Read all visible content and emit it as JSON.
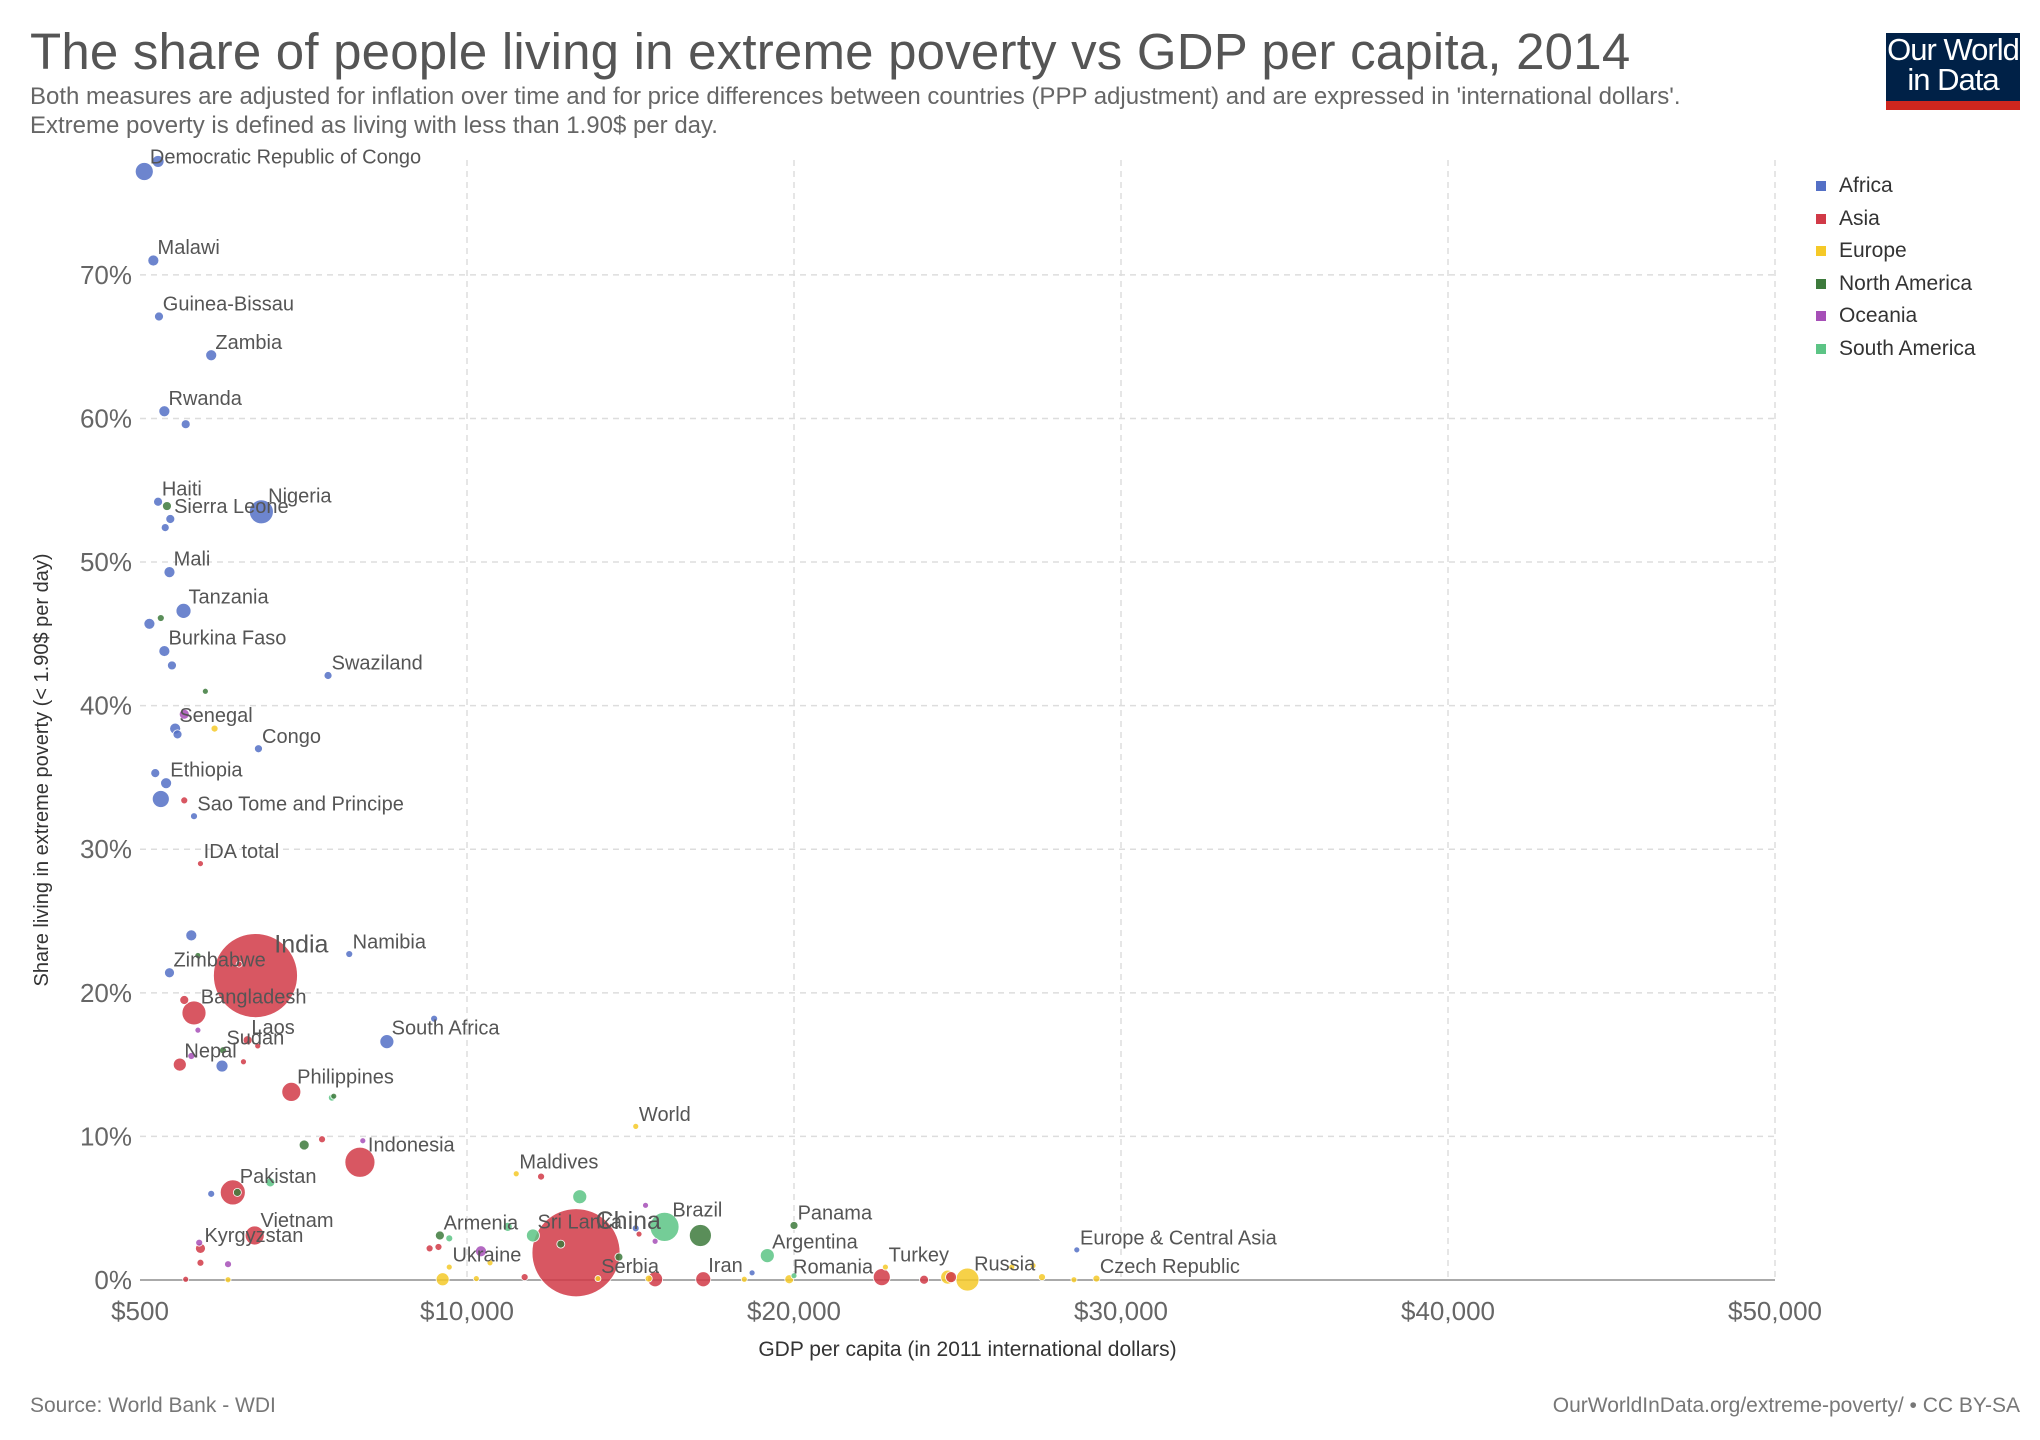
{
  "title": "The share of people living in extreme poverty vs GDP per capita, 2014",
  "subtitle": "Both measures are adjusted for inflation over time and for price differences between countries (PPP adjustment) and are expressed in 'international dollars'.\nExtreme poverty is defined as living with less than 1.90$ per day.",
  "logo": {
    "line1": "Our World",
    "line2": "in Data",
    "bg_color": "#002147",
    "accent_color": "#ce261e"
  },
  "footer": {
    "source": "Source: World Bank - WDI",
    "url": "OurWorldInData.org/extreme-poverty/ • CC BY-SA"
  },
  "legend": [
    {
      "name": "Africa",
      "color": "#5470c6"
    },
    {
      "name": "Asia",
      "color": "#d13a47"
    },
    {
      "name": "Europe",
      "color": "#f5c928"
    },
    {
      "name": "North America",
      "color": "#3d7a3c"
    },
    {
      "name": "Oceania",
      "color": "#a64fb7"
    },
    {
      "name": "South America",
      "color": "#5cc485"
    }
  ],
  "chart_data": {
    "type": "scatter",
    "title": "The share of people living in extreme poverty vs GDP per capita, 2014",
    "xlabel": "GDP per capita (in 2011 international dollars)",
    "ylabel": "Share living in extreme poverty (< 1.90$ per day)",
    "x_scale": "log",
    "xlim": [
      500,
      50000
    ],
    "ylim": [
      0,
      78
    ],
    "x_ticks": [
      {
        "value": 500,
        "label": "$500"
      },
      {
        "value": 10000,
        "label": "$10,000"
      },
      {
        "value": 20000,
        "label": "$20,000"
      },
      {
        "value": 30000,
        "label": "$30,000"
      },
      {
        "value": 40000,
        "label": "$40,000"
      },
      {
        "value": 50000,
        "label": "$50,000"
      }
    ],
    "y_ticks": [
      {
        "value": 0,
        "label": "0%"
      },
      {
        "value": 10,
        "label": "10%"
      },
      {
        "value": 20,
        "label": "20%"
      },
      {
        "value": 30,
        "label": "30%"
      },
      {
        "value": 40,
        "label": "40%"
      },
      {
        "value": 50,
        "label": "50%"
      },
      {
        "value": 60,
        "label": "60%"
      },
      {
        "value": 70,
        "label": "70%"
      }
    ],
    "grid": true,
    "legend_position": "right",
    "points": [
      {
        "label": "Democratic Republic of Congo",
        "x": 520,
        "y": 77.2,
        "region": "Africa",
        "r": 9
      },
      {
        "label": "",
        "x": 590,
        "y": 77.9,
        "region": "Africa",
        "r": 6
      },
      {
        "label": "Malawi",
        "x": 565,
        "y": 71,
        "region": "Africa",
        "r": 5.5
      },
      {
        "label": "Guinea-Bissau",
        "x": 595,
        "y": 67.1,
        "region": "Africa",
        "r": 4.5
      },
      {
        "label": "Zambia",
        "x": 960,
        "y": 64.4,
        "region": "Africa",
        "r": 5.5
      },
      {
        "label": "Rwanda",
        "x": 625,
        "y": 60.5,
        "region": "Africa",
        "r": 5.5
      },
      {
        "label": "",
        "x": 760,
        "y": 59.6,
        "region": "Africa",
        "r": 4.5
      },
      {
        "label": "Haiti",
        "x": 590,
        "y": 54.2,
        "region": "Africa",
        "r": 4.5
      },
      {
        "label": "",
        "x": 640,
        "y": 53.9,
        "region": "North America",
        "r": 4.5
      },
      {
        "label": "Sierra Leone",
        "x": 660,
        "y": 53,
        "region": "Africa",
        "r": 4.5
      },
      {
        "label": "Nigeria",
        "x": 1520,
        "y": 53.5,
        "region": "Africa",
        "r": 12
      },
      {
        "label": "",
        "x": 630,
        "y": 52.4,
        "region": "Africa",
        "r": 4
      },
      {
        "label": "Mali",
        "x": 655,
        "y": 49.3,
        "region": "Africa",
        "r": 5.5
      },
      {
        "label": "Tanzania",
        "x": 745,
        "y": 46.6,
        "region": "Africa",
        "r": 7.5
      },
      {
        "label": "",
        "x": 545,
        "y": 45.7,
        "region": "Africa",
        "r": 5.5
      },
      {
        "label": "",
        "x": 605,
        "y": 46.1,
        "region": "North America",
        "r": 3.5
      },
      {
        "label": "Burkina Faso",
        "x": 625,
        "y": 43.8,
        "region": "Africa",
        "r": 5.5
      },
      {
        "label": "",
        "x": 670,
        "y": 42.8,
        "region": "Africa",
        "r": 4.5
      },
      {
        "label": "",
        "x": 910,
        "y": 41,
        "region": "North America",
        "r": 3
      },
      {
        "label": "Swaziland",
        "x": 2800,
        "y": 42.1,
        "region": "Africa",
        "r": 4
      },
      {
        "label": "",
        "x": 750,
        "y": 39.4,
        "region": "Oceania",
        "r": 5
      },
      {
        "label": "Senegal",
        "x": 690,
        "y": 38.4,
        "region": "Africa",
        "r": 5.5
      },
      {
        "label": "",
        "x": 705,
        "y": 38,
        "region": "Africa",
        "r": 4.5
      },
      {
        "label": "",
        "x": 990,
        "y": 38.4,
        "region": "Europe",
        "r": 3.5
      },
      {
        "label": "Congo",
        "x": 1480,
        "y": 37,
        "region": "Africa",
        "r": 4
      },
      {
        "label": "",
        "x": 575,
        "y": 35.3,
        "region": "Africa",
        "r": 4.5
      },
      {
        "label": "Ethiopia",
        "x": 635,
        "y": 34.6,
        "region": "Africa",
        "r": 5.5
      },
      {
        "label": "",
        "x": 605,
        "y": 33.5,
        "region": "Africa",
        "r": 8.5
      },
      {
        "label": "",
        "x": 750,
        "y": 33.4,
        "region": "Asia",
        "r": 3.5
      },
      {
        "label": "Sao Tome and Principe",
        "x": 820,
        "y": 32.3,
        "region": "Africa",
        "r": 3.5
      },
      {
        "label": "IDA total",
        "x": 870,
        "y": 29,
        "region": "Asia",
        "r": 3
      },
      {
        "label": "India",
        "x": 1440,
        "y": 21.2,
        "region": "Asia",
        "r": 42
      },
      {
        "label": "Namibia",
        "x": 3400,
        "y": 22.7,
        "region": "Africa",
        "r": 3.5
      },
      {
        "label": "",
        "x": 800,
        "y": 24,
        "region": "Africa",
        "r": 5.5
      },
      {
        "label": "Zimbabwe",
        "x": 655,
        "y": 21.4,
        "region": "Africa",
        "r": 5
      },
      {
        "label": "",
        "x": 850,
        "y": 22.6,
        "region": "North America",
        "r": 3
      },
      {
        "label": "",
        "x": 1240,
        "y": 22,
        "region": "Asia",
        "r": 3
      },
      {
        "label": "",
        "x": 750,
        "y": 19.5,
        "region": "Asia",
        "r": 4.5
      },
      {
        "label": "Bangladesh",
        "x": 820,
        "y": 18.6,
        "region": "Asia",
        "r": 12
      },
      {
        "label": "South Africa",
        "x": 4800,
        "y": 16.6,
        "region": "Africa",
        "r": 7
      },
      {
        "label": "",
        "x": 7400,
        "y": 18.2,
        "region": "Africa",
        "r": 3.5
      },
      {
        "label": "",
        "x": 850,
        "y": 17.4,
        "region": "Oceania",
        "r": 3
      },
      {
        "label": "Laos",
        "x": 1340,
        "y": 16.7,
        "region": "Asia",
        "r": 4.5
      },
      {
        "label": "",
        "x": 1470,
        "y": 16.3,
        "region": "Asia",
        "r": 3
      },
      {
        "label": "Nepal",
        "x": 720,
        "y": 15,
        "region": "Asia",
        "r": 6.5
      },
      {
        "label": "",
        "x": 800,
        "y": 15.6,
        "region": "Oceania",
        "r": 3.5
      },
      {
        "label": "Sudan",
        "x": 1070,
        "y": 16,
        "region": "North America",
        "r": 3.5
      },
      {
        "label": "",
        "x": 1060,
        "y": 14.9,
        "region": "Africa",
        "r": 6
      },
      {
        "label": "",
        "x": 1290,
        "y": 15.2,
        "region": "Asia",
        "r": 3
      },
      {
        "label": "Philippines",
        "x": 2000,
        "y": 13.1,
        "region": "Asia",
        "r": 9.5
      },
      {
        "label": "",
        "x": 2900,
        "y": 12.7,
        "region": "South America",
        "r": 3.5
      },
      {
        "label": "",
        "x": 2950,
        "y": 12.8,
        "region": "North America",
        "r": 3
      },
      {
        "label": "World",
        "x": 14300,
        "y": 10.7,
        "region": "Europe",
        "r": 3
      },
      {
        "label": "",
        "x": 2250,
        "y": 9.4,
        "region": "North America",
        "r": 5
      },
      {
        "label": "",
        "x": 2650,
        "y": 9.8,
        "region": "Asia",
        "r": 3.5
      },
      {
        "label": "Indonesia",
        "x": 3750,
        "y": 8.2,
        "region": "Asia",
        "r": 15
      },
      {
        "label": "",
        "x": 3850,
        "y": 9.7,
        "region": "Oceania",
        "r": 3
      },
      {
        "label": "Maldives",
        "x": 11100,
        "y": 7.4,
        "region": "Europe",
        "r": 3
      },
      {
        "label": "",
        "x": 11700,
        "y": 7.2,
        "region": "Asia",
        "r": 3.5
      },
      {
        "label": "Pakistan",
        "x": 1170,
        "y": 6.1,
        "region": "Asia",
        "r": 12.5
      },
      {
        "label": "",
        "x": 960,
        "y": 6,
        "region": "Africa",
        "r": 3.5
      },
      {
        "label": "",
        "x": 1650,
        "y": 6.8,
        "region": "South America",
        "r": 4.5
      },
      {
        "label": "",
        "x": 1220,
        "y": 6.1,
        "region": "North America",
        "r": 4
      },
      {
        "label": "China",
        "x": 12600,
        "y": 1.9,
        "region": "Asia",
        "r": 44
      },
      {
        "label": "Brazil",
        "x": 15200,
        "y": 3.7,
        "region": "South America",
        "r": 14.5
      },
      {
        "label": "",
        "x": 12700,
        "y": 5.8,
        "region": "South America",
        "r": 7
      },
      {
        "label": "",
        "x": 14600,
        "y": 5.2,
        "region": "Oceania",
        "r": 3
      },
      {
        "label": "",
        "x": 14300,
        "y": 3.6,
        "region": "Africa",
        "r": 3.5
      },
      {
        "label": "",
        "x": 16400,
        "y": 3.1,
        "region": "North America",
        "r": 11
      },
      {
        "label": "Panama",
        "x": 20000,
        "y": 3.8,
        "region": "North America",
        "r": 4
      },
      {
        "label": "Vietnam",
        "x": 1430,
        "y": 3.1,
        "region": "Asia",
        "r": 9.5
      },
      {
        "label": "Armenia",
        "x": 7800,
        "y": 3.1,
        "region": "North America",
        "r": 4.5
      },
      {
        "label": "",
        "x": 8500,
        "y": 2.9,
        "region": "South America",
        "r": 3.5
      },
      {
        "label": "",
        "x": 10900,
        "y": 3.7,
        "region": "South America",
        "r": 4.5
      },
      {
        "label": "Sri Lanka",
        "x": 11500,
        "y": 3.1,
        "region": "South America",
        "r": 6.5
      },
      {
        "label": "",
        "x": 12200,
        "y": 2.5,
        "region": "North America",
        "r": 4
      },
      {
        "label": "",
        "x": 14400,
        "y": 3.2,
        "region": "Asia",
        "r": 3
      },
      {
        "label": "",
        "x": 14900,
        "y": 2.7,
        "region": "Oceania",
        "r": 3
      },
      {
        "label": "Argentina",
        "x": 18900,
        "y": 1.7,
        "region": "South America",
        "r": 7
      },
      {
        "label": "Kyrgyzstan",
        "x": 870,
        "y": 2.2,
        "region": "Asia",
        "r": 5
      },
      {
        "label": "",
        "x": 860,
        "y": 2.6,
        "region": "Oceania",
        "r": 3.5
      },
      {
        "label": "",
        "x": 870,
        "y": 1.2,
        "region": "Asia",
        "r": 3.5
      },
      {
        "label": "",
        "x": 1120,
        "y": 1.1,
        "region": "Oceania",
        "r": 3.5
      },
      {
        "label": "",
        "x": 7100,
        "y": 2.2,
        "region": "Asia",
        "r": 3.5
      },
      {
        "label": "",
        "x": 7700,
        "y": 2.3,
        "region": "Asia",
        "r": 3.5
      },
      {
        "label": "",
        "x": 10300,
        "y": 2,
        "region": "Oceania",
        "r": 5.5
      },
      {
        "label": "",
        "x": 10500,
        "y": 1.2,
        "region": "Europe",
        "r": 3
      },
      {
        "label": "",
        "x": 13800,
        "y": 1.6,
        "region": "North America",
        "r": 4
      },
      {
        "label": "Ukraine",
        "x": 8500,
        "y": 0.9,
        "region": "Europe",
        "r": 3
      },
      {
        "label": "",
        "x": 8000,
        "y": 0.05,
        "region": "Europe",
        "r": 6.5
      },
      {
        "label": "",
        "x": 10200,
        "y": 0.1,
        "region": "Europe",
        "r": 3
      },
      {
        "label": "",
        "x": 11300,
        "y": 0.2,
        "region": "Asia",
        "r": 3.5
      },
      {
        "label": "Serbia",
        "x": 13200,
        "y": 0.1,
        "region": "Europe",
        "r": 3
      },
      {
        "label": "",
        "x": 14900,
        "y": 0.05,
        "region": "Asia",
        "r": 7.5
      },
      {
        "label": "",
        "x": 14700,
        "y": 0.1,
        "region": "Europe",
        "r": 3.5
      },
      {
        "label": "Iran",
        "x": 16500,
        "y": 0.05,
        "region": "Asia",
        "r": 7.5
      },
      {
        "label": "",
        "x": 18000,
        "y": 0.05,
        "region": "Europe",
        "r": 3
      },
      {
        "label": "",
        "x": 18300,
        "y": 0.5,
        "region": "Africa",
        "r": 3
      },
      {
        "label": "Romania",
        "x": 19800,
        "y": 0.05,
        "region": "Europe",
        "r": 4.5
      },
      {
        "label": "",
        "x": 20000,
        "y": 0.3,
        "region": "South America",
        "r": 3
      },
      {
        "label": "",
        "x": 22300,
        "y": 0.2,
        "region": "Asia",
        "r": 8.5
      },
      {
        "label": "Turkey",
        "x": 22400,
        "y": 0.9,
        "region": "Europe",
        "r": 3
      },
      {
        "label": "",
        "x": 23500,
        "y": 0.02,
        "region": "Asia",
        "r": 4.5
      },
      {
        "label": "",
        "x": 24200,
        "y": 0.2,
        "region": "Europe",
        "r": 7
      },
      {
        "label": "",
        "x": 24300,
        "y": 0.2,
        "region": "Asia",
        "r": 5.5
      },
      {
        "label": "Russia",
        "x": 24800,
        "y": 0.03,
        "region": "Europe",
        "r": 11.5
      },
      {
        "label": "",
        "x": 26200,
        "y": 0.9,
        "region": "Europe",
        "r": 3
      },
      {
        "label": "",
        "x": 26900,
        "y": 1,
        "region": "Europe",
        "r": 3
      },
      {
        "label": "",
        "x": 27200,
        "y": 0.2,
        "region": "Europe",
        "r": 3.5
      },
      {
        "label": "Europe & Central Asia",
        "x": 28400,
        "y": 2.1,
        "region": "Africa",
        "r": 3
      },
      {
        "label": "",
        "x": 28300,
        "y": 0.02,
        "region": "Europe",
        "r": 3
      },
      {
        "label": "Czech Republic",
        "x": 29100,
        "y": 0.1,
        "region": "Europe",
        "r": 3.5
      },
      {
        "label": "",
        "x": 760,
        "y": 0.05,
        "region": "Asia",
        "r": 3
      },
      {
        "label": "",
        "x": 1120,
        "y": 0.02,
        "region": "Europe",
        "r": 3
      }
    ]
  }
}
